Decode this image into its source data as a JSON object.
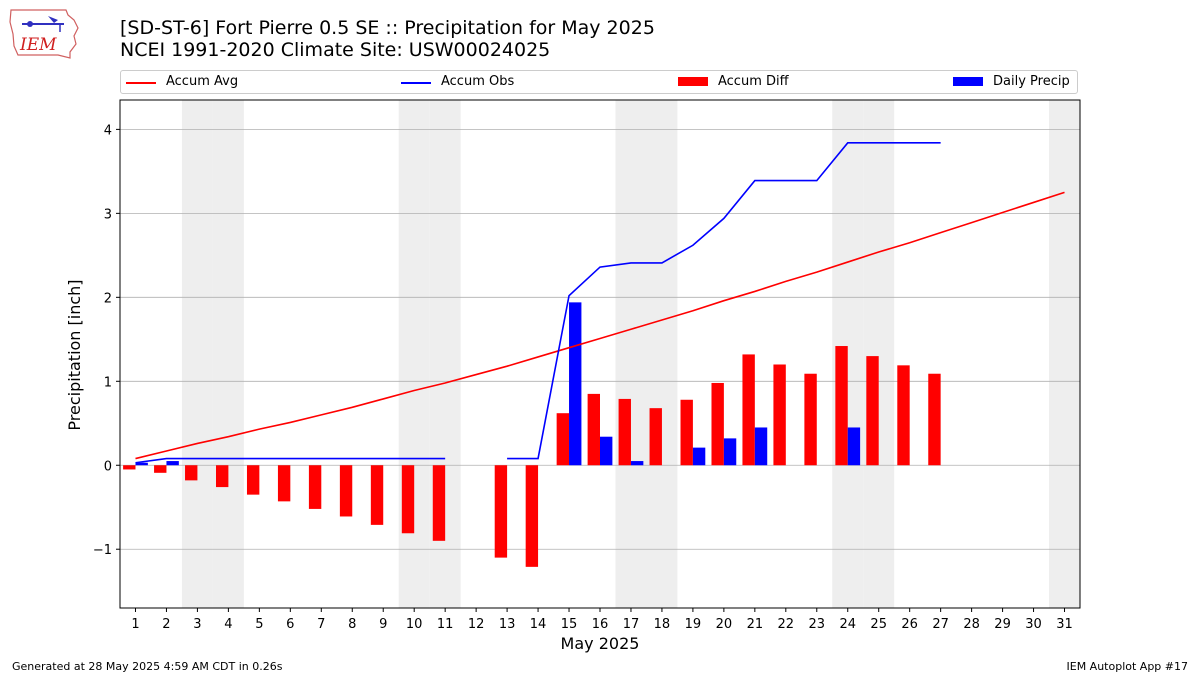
{
  "header": {
    "title_line1": "[SD-ST-6] Fort Pierre 0.5 SE :: Precipitation for May 2025",
    "title_line2": "NCEI 1991-2020 Climate Site: USW00024025",
    "logo_text": "IEM"
  },
  "footer": {
    "left": "Generated at 28 May 2025 4:59 AM CDT in 0.26s",
    "right": "IEM Autoplot App #17"
  },
  "colors": {
    "accum_avg": "#ff0000",
    "accum_obs": "#0000ff",
    "accum_diff": "#ff0000",
    "daily_precip": "#0000ff",
    "weekend_shade": "#eeeeee",
    "grid": "#b0b0b0"
  },
  "chart_data": {
    "type": "bar",
    "title": "[SD-ST-6] Fort Pierre 0.5 SE :: Precipitation for May 2025",
    "subtitle": "NCEI 1991-2020 Climate Site: USW00024025",
    "xlabel": "May 2025",
    "ylabel": "Precipitation [inch]",
    "ylim": [
      -1.7,
      4.35
    ],
    "xlim": [
      0.5,
      31.5
    ],
    "yticks": [
      -1,
      0,
      1,
      2,
      3,
      4
    ],
    "ytick_labels": [
      "−1",
      "0",
      "1",
      "2",
      "3",
      "4"
    ],
    "days": [
      1,
      2,
      3,
      4,
      5,
      6,
      7,
      8,
      9,
      10,
      11,
      12,
      13,
      14,
      15,
      16,
      17,
      18,
      19,
      20,
      21,
      22,
      23,
      24,
      25,
      26,
      27,
      28,
      29,
      30,
      31
    ],
    "weekend_days": [
      3,
      4,
      10,
      11,
      17,
      18,
      24,
      25,
      31
    ],
    "grid": "horizontal",
    "legend_position": "top",
    "series": [
      {
        "name": "Accum Avg",
        "kind": "line",
        "x": [
          1,
          2,
          3,
          4,
          5,
          6,
          7,
          8,
          9,
          10,
          11,
          12,
          13,
          14,
          15,
          16,
          17,
          18,
          19,
          20,
          21,
          22,
          23,
          24,
          25,
          26,
          27,
          28,
          29,
          30,
          31
        ],
        "values": [
          0.08,
          0.17,
          0.26,
          0.34,
          0.43,
          0.51,
          0.6,
          0.69,
          0.79,
          0.89,
          0.98,
          1.08,
          1.18,
          1.29,
          1.4,
          1.51,
          1.62,
          1.73,
          1.84,
          1.96,
          2.07,
          2.19,
          2.3,
          2.42,
          2.54,
          2.65,
          2.77,
          2.89,
          3.01,
          3.13,
          3.25
        ]
      },
      {
        "name": "Accum Obs",
        "kind": "line",
        "segments": [
          {
            "x": [
              1,
              2,
              3,
              4,
              5,
              6,
              7,
              8,
              9,
              10,
              11
            ],
            "values": [
              0.03,
              0.08,
              0.08,
              0.08,
              0.08,
              0.08,
              0.08,
              0.08,
              0.08,
              0.08,
              0.08
            ]
          },
          {
            "x": [
              13,
              14,
              15,
              16,
              17,
              18,
              19,
              20,
              21,
              22,
              23,
              24,
              25,
              26,
              27
            ],
            "values": [
              0.08,
              0.08,
              2.02,
              2.36,
              2.41,
              2.41,
              2.62,
              2.94,
              3.39,
              3.39,
              3.39,
              3.84,
              3.84,
              3.84,
              3.84
            ]
          }
        ]
      },
      {
        "name": "Accum Diff",
        "kind": "bar",
        "x": [
          1,
          2,
          3,
          4,
          5,
          6,
          7,
          8,
          9,
          10,
          11,
          13,
          14,
          15,
          16,
          17,
          18,
          19,
          20,
          21,
          22,
          23,
          24,
          25,
          26,
          27
        ],
        "values": [
          -0.05,
          -0.09,
          -0.18,
          -0.26,
          -0.35,
          -0.43,
          -0.52,
          -0.61,
          -0.71,
          -0.81,
          -0.9,
          -1.1,
          -1.21,
          0.62,
          0.85,
          0.79,
          0.68,
          0.78,
          0.98,
          1.32,
          1.2,
          1.09,
          1.42,
          1.3,
          1.19,
          1.09
        ]
      },
      {
        "name": "Daily Precip",
        "kind": "bar",
        "x": [
          1,
          2,
          15,
          16,
          17,
          19,
          20,
          21,
          24
        ],
        "values": [
          0.03,
          0.05,
          1.94,
          0.34,
          0.05,
          0.21,
          0.32,
          0.45,
          0.45
        ]
      }
    ]
  }
}
